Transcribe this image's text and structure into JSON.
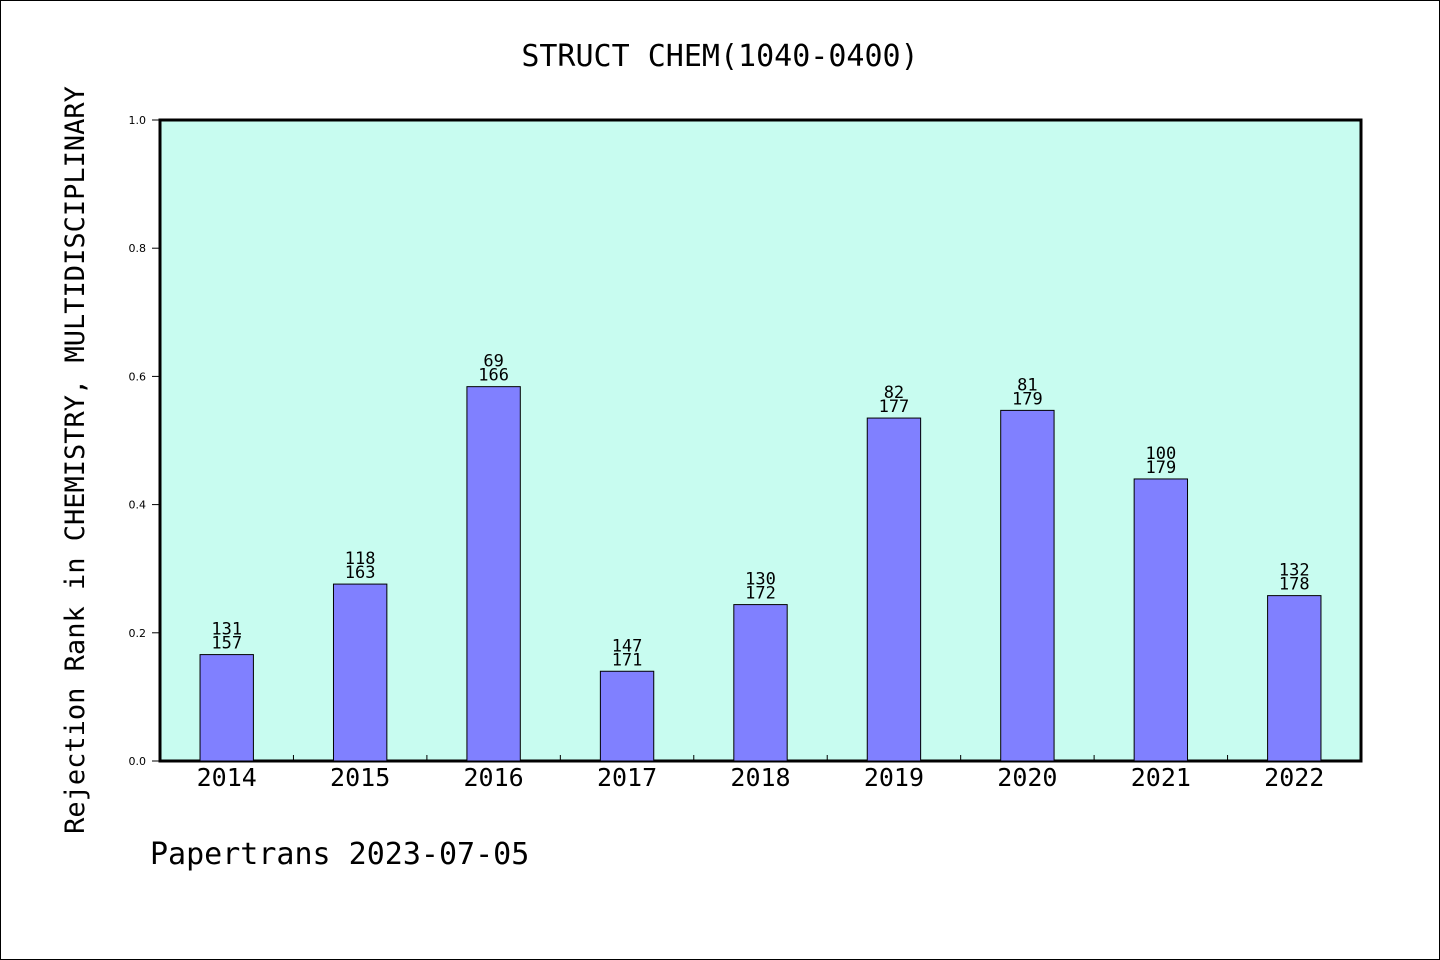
{
  "chart_data": {
    "type": "bar",
    "title": "STRUCT CHEM(1040-0400)",
    "ylabel": "Rejection Rank in CHEMISTRY, MULTIDISCIPLINARY",
    "xlabel": "",
    "categories": [
      "2014",
      "2015",
      "2016",
      "2017",
      "2018",
      "2019",
      "2020",
      "2021",
      "2022"
    ],
    "values": [
      0.166,
      0.276,
      0.584,
      0.14,
      0.244,
      0.535,
      0.547,
      0.44,
      0.258
    ],
    "bar_labels_top": [
      "131",
      "118",
      "69",
      "147",
      "130",
      "82",
      "81",
      "100",
      "132"
    ],
    "bar_labels_bottom": [
      "157",
      "163",
      "166",
      "171",
      "172",
      "177",
      "179",
      "179",
      "178"
    ],
    "ylim": [
      0,
      1.0
    ],
    "yticks": [
      "0.0",
      "0.2",
      "0.4",
      "0.6",
      "0.8",
      "1.0"
    ],
    "grid": false,
    "colors": {
      "plot_background": "#c8fcf0",
      "bar_fill": "#8080ff",
      "bar_stroke": "#000000"
    }
  },
  "footer": {
    "credit": "Papertrans 2023-07-05"
  }
}
